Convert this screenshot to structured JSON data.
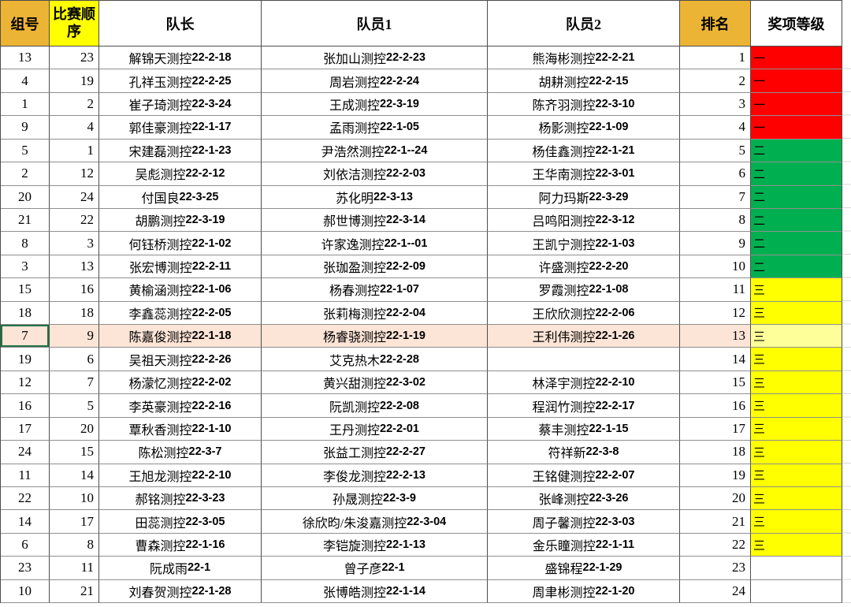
{
  "sheet": {
    "headers": {
      "group": "组号",
      "order": "比赛顺序",
      "captain": "队长",
      "member1": "队员1",
      "member2": "队员2",
      "rank": "排名",
      "award": "奖项等级"
    },
    "colors": {
      "header_gold": "#ECB434",
      "header_yellow": "#FFFF00",
      "grid_vertical": "#4d4d4d",
      "grid_horizontal": "#8f8f8f",
      "selected_fill": "#FCE4D6",
      "selected_award_fill": "#FFFF99",
      "selection_border": "#217346",
      "award_colors": {
        "一": "#FF0000",
        "二": "#00B050",
        "三": "#FFFF00"
      }
    },
    "selected_rank": "13",
    "rows": [
      {
        "group": "13",
        "order": "23",
        "captain": "解锦天测控22-2-18",
        "member1": "张加山测控22-2-23",
        "member2": "熊海彬测控22-2-21",
        "rank": "1",
        "award": "一"
      },
      {
        "group": "4",
        "order": "19",
        "captain": "孔祥玉测控22-2-25",
        "member1": "周岩测控22-2-24",
        "member2": "胡耕测控22-2-15",
        "rank": "2",
        "award": "一"
      },
      {
        "group": "1",
        "order": "2",
        "captain": "崔子琦测控22-3-24",
        "member1": "王成测控22-3-19",
        "member2": "陈齐羽测控22-3-10",
        "rank": "3",
        "award": "一"
      },
      {
        "group": "9",
        "order": "4",
        "captain": "郭佳豪测控22-1-17",
        "member1": "孟雨测控 22-1-05",
        "member2": "杨影测控  22-1-09",
        "rank": "4",
        "award": "一"
      },
      {
        "group": "5",
        "order": "1",
        "captain": "宋建磊测控  22-1-23",
        "member1": "尹浩然测控  22-1--24",
        "member2": "杨佳鑫测控  22-1-21",
        "rank": "5",
        "award": "二"
      },
      {
        "group": "2",
        "order": "12",
        "captain": "吴彪测控22-2-12",
        "member1": "刘依洁测控22-2-03",
        "member2": "王华南测控22-3-01",
        "rank": "6",
        "award": "二"
      },
      {
        "group": "20",
        "order": "24",
        "captain": "付国良22-3-25",
        "member1": "苏化明22-3-13",
        "member2": "阿力玛斯22-3-29",
        "rank": "7",
        "award": "二"
      },
      {
        "group": "21",
        "order": "22",
        "captain": "胡鹏测控22-3-19",
        "member1": "郝世博测控22-3-14",
        "member2": "吕鸣阳测控22-3-12",
        "rank": "8",
        "award": "二"
      },
      {
        "group": "8",
        "order": "3",
        "captain": "何钰桥测控  22-1-02",
        "member1": "许家逸测控  22-1--01",
        "member2": "王凯宁测控  22-1-03",
        "rank": "9",
        "award": "二"
      },
      {
        "group": "3",
        "order": "13",
        "captain": "张宏博测控22-2-11",
        "member1": "张珈盈测控22-2-09",
        "member2": "许盛测控22-2-20",
        "rank": "10",
        "award": "二"
      },
      {
        "group": "15",
        "order": "16",
        "captain": "黄榆涵测控22-1-06",
        "member1": "杨春测控22-1-07",
        "member2": "罗霞测控22-1-08",
        "rank": "11",
        "award": "三"
      },
      {
        "group": "18",
        "order": "18",
        "captain": "李鑫蕊测控22-2-05",
        "member1": "张莉梅测控22-2-04",
        "member2": "王欣欣测控22-2-06",
        "rank": "12",
        "award": "三"
      },
      {
        "group": "7",
        "order": "9",
        "captain": "陈嘉俊测控22-1-18",
        "member1": "杨睿骁测控22-1-19",
        "member2": "王利伟测控22-1-26",
        "rank": "13",
        "award": "三"
      },
      {
        "group": "19",
        "order": "6",
        "captain": "吴祖天测控22-2-26",
        "member1": "艾克热木22-2-28",
        "member2": "",
        "rank": "14",
        "award": "三"
      },
      {
        "group": "12",
        "order": "7",
        "captain": "杨濛忆测控22-2-02",
        "member1": "黄兴甜测控22-3-02",
        "member2": "林泽宇测控22-2-10",
        "rank": "15",
        "award": "三"
      },
      {
        "group": "16",
        "order": "5",
        "captain": "李英豪测控22-2-16",
        "member1": "阮凯测控22-2-08",
        "member2": "程润竹测控22-2-17",
        "rank": "16",
        "award": "三"
      },
      {
        "group": "17",
        "order": "20",
        "captain": "覃秋香测控22-1-10",
        "member1": "王丹测控22-2-01",
        "member2": "蔡丰测控22-1-15",
        "rank": "17",
        "award": "三"
      },
      {
        "group": "24",
        "order": "15",
        "captain": "陈松测控22-3-7",
        "member1": "张益工测控22-2-27",
        "member2": "符祥新22-3-8",
        "rank": "18",
        "award": "三"
      },
      {
        "group": "11",
        "order": "14",
        "captain": "王旭龙测控22-2-10",
        "member1": "李俊龙测控22-2-13",
        "member2": "王铭健测控22-2-07",
        "rank": "19",
        "award": "三"
      },
      {
        "group": "22",
        "order": "10",
        "captain": "郝铭测控22-3-23",
        "member1": "孙晟测控22-3-9",
        "member2": "张峰测控22-3-26",
        "rank": "20",
        "award": "三"
      },
      {
        "group": "14",
        "order": "17",
        "captain": "田蕊测控22-3-05",
        "member1": "徐欣昀/朱浚嘉测控22-3-04",
        "member2": "周子馨测控22-3-03",
        "rank": "21",
        "award": "三"
      },
      {
        "group": "6",
        "order": "8",
        "captain": "曹森测控22-1-16",
        "member1": "李铠旋测控22-1-13",
        "member2": "金乐瞳测控22-1-11",
        "rank": "22",
        "award": "三"
      },
      {
        "group": "23",
        "order": "11",
        "captain": "阮成雨  22-1",
        "member1": "曾子彦22-1",
        "member2": "盛锦程22-1-29",
        "rank": "23",
        "award": ""
      },
      {
        "group": "10",
        "order": "21",
        "captain": "刘春贺测控22-1-28",
        "member1": "张博皓测控22-1-14",
        "member2": "周聿彬测控22-1-20",
        "rank": "24",
        "award": ""
      }
    ]
  }
}
